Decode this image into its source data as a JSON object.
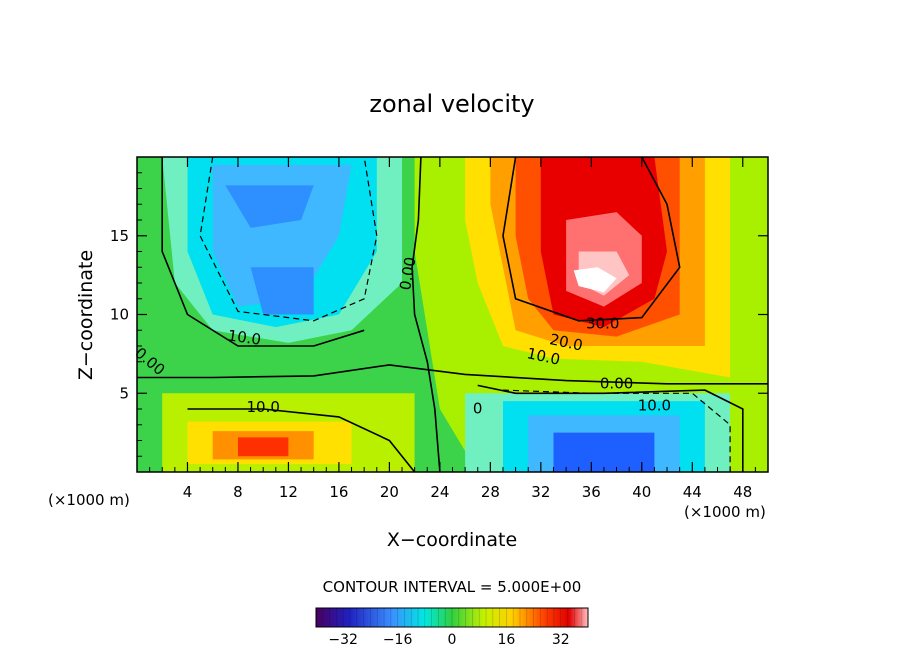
{
  "chart_data": {
    "type": "contour",
    "title": "zonal velocity",
    "xlabel": "X−coordinate",
    "ylabel": "Z−coordinate",
    "x_unit_left": "(×1000 m)",
    "x_unit_right": "(×1000 m)",
    "xlim": [
      0,
      50
    ],
    "ylim": [
      0,
      20
    ],
    "x_ticks": [
      "4",
      "8",
      "12",
      "16",
      "20",
      "24",
      "28",
      "32",
      "36",
      "40",
      "44",
      "48"
    ],
    "x_tick_values": [
      4,
      8,
      12,
      16,
      20,
      24,
      28,
      32,
      36,
      40,
      44,
      48
    ],
    "y_ticks": [
      "5",
      "10",
      "15"
    ],
    "y_tick_values": [
      5,
      10,
      15
    ],
    "grid": false,
    "contour_interval_label": "CONTOUR INTERVAL = 5.000E+00",
    "contour_interval": 5.0,
    "contour_labels": [
      {
        "text": "0.00",
        "x": 21.5,
        "y": 12.6,
        "rot": -80
      },
      {
        "text": "0.00",
        "x": 1.0,
        "y": 7.0,
        "rot": 40
      },
      {
        "text": "10.0",
        "x": 8.5,
        "y": 8.5,
        "rot": 8
      },
      {
        "text": "10.0",
        "x": 10.0,
        "y": 4.1,
        "rot": 0
      },
      {
        "text": "30.0",
        "x": 36.9,
        "y": 9.4,
        "rot": 0
      },
      {
        "text": "20.0",
        "x": 34.0,
        "y": 8.2,
        "rot": 12
      },
      {
        "text": "10.0",
        "x": 32.2,
        "y": 7.3,
        "rot": 12
      },
      {
        "text": "0.00",
        "x": 38.0,
        "y": 5.6,
        "rot": 0
      },
      {
        "text": "10.0",
        "x": 41.0,
        "y": 4.2,
        "rot": 0
      },
      {
        "text": "0",
        "x": 27.0,
        "y": 4.0,
        "rot": 0
      }
    ],
    "features": [
      {
        "label": "westward core (upper left)",
        "x": 11.0,
        "y": 11.5,
        "value": -12
      },
      {
        "label": "westward core (upper left top)",
        "x": 10.0,
        "y": 17.0,
        "value": -10
      },
      {
        "label": "eastward jet core",
        "x": 36.5,
        "y": 12.3,
        "value": 37
      },
      {
        "label": "eastward low-level core",
        "x": 10.5,
        "y": 1.5,
        "value": 20
      },
      {
        "label": "westward low-level core",
        "x": 37.5,
        "y": 1.5,
        "value": -20
      }
    ],
    "colorbar": {
      "ticks": [
        "−32",
        "−16",
        "0",
        "16",
        "32"
      ],
      "tick_values": [
        -32,
        -16,
        0,
        16,
        32
      ],
      "range": [
        -40,
        40
      ]
    }
  }
}
